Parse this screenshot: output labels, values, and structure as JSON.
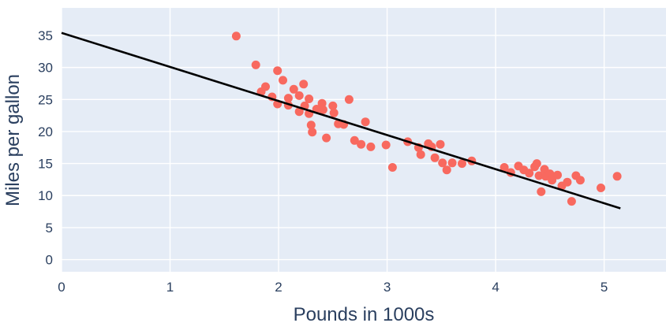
{
  "chart": {
    "xlabel": "Pounds in 1000s",
    "ylabel": "Miles per gallon"
  },
  "chart_data": {
    "type": "scatter",
    "title": "",
    "xlabel": "Pounds in 1000s",
    "ylabel": "Miles per gallon",
    "xlim": [
      0,
      5.57
    ],
    "ylim": [
      -1.9,
      39.3
    ],
    "x_ticks": [
      0,
      1,
      2,
      3,
      4,
      5
    ],
    "y_ticks": [
      0,
      5,
      10,
      15,
      20,
      25,
      30,
      35
    ],
    "grid": true,
    "legend": "none",
    "points": [
      [
        1.61,
        34.9
      ],
      [
        1.79,
        30.4
      ],
      [
        1.84,
        26.2
      ],
      [
        1.88,
        27.0
      ],
      [
        1.94,
        25.4
      ],
      [
        1.99,
        29.5
      ],
      [
        1.99,
        24.3
      ],
      [
        2.04,
        28.0
      ],
      [
        2.09,
        25.2
      ],
      [
        2.09,
        24.1
      ],
      [
        2.14,
        26.6
      ],
      [
        2.19,
        25.6
      ],
      [
        2.19,
        23.1
      ],
      [
        2.23,
        27.4
      ],
      [
        2.24,
        24.0
      ],
      [
        2.28,
        25.1
      ],
      [
        2.28,
        22.8
      ],
      [
        2.3,
        21.0
      ],
      [
        2.31,
        19.9
      ],
      [
        2.35,
        23.5
      ],
      [
        2.4,
        24.4
      ],
      [
        2.41,
        23.4
      ],
      [
        2.44,
        19.0
      ],
      [
        2.5,
        24.0
      ],
      [
        2.51,
        22.9
      ],
      [
        2.55,
        21.2
      ],
      [
        2.6,
        21.1
      ],
      [
        2.65,
        25.0
      ],
      [
        2.7,
        18.6
      ],
      [
        2.76,
        18.0
      ],
      [
        2.8,
        21.5
      ],
      [
        2.85,
        17.6
      ],
      [
        2.99,
        17.9
      ],
      [
        3.05,
        14.4
      ],
      [
        3.19,
        18.4
      ],
      [
        3.29,
        17.5
      ],
      [
        3.31,
        16.4
      ],
      [
        3.38,
        18.1
      ],
      [
        3.41,
        17.6
      ],
      [
        3.44,
        15.9
      ],
      [
        3.49,
        18.0
      ],
      [
        3.51,
        15.1
      ],
      [
        3.55,
        14.0
      ],
      [
        3.6,
        15.1
      ],
      [
        3.69,
        15.0
      ],
      [
        3.78,
        15.4
      ],
      [
        4.08,
        14.4
      ],
      [
        4.14,
        13.6
      ],
      [
        4.21,
        14.6
      ],
      [
        4.26,
        14.0
      ],
      [
        4.31,
        13.5
      ],
      [
        4.36,
        14.5
      ],
      [
        4.38,
        15.0
      ],
      [
        4.4,
        13.1
      ],
      [
        4.42,
        10.6
      ],
      [
        4.45,
        14.1
      ],
      [
        4.46,
        13.0
      ],
      [
        4.5,
        13.4
      ],
      [
        4.52,
        12.4
      ],
      [
        4.57,
        13.2
      ],
      [
        4.61,
        11.5
      ],
      [
        4.66,
        12.1
      ],
      [
        4.7,
        9.1
      ],
      [
        4.74,
        13.1
      ],
      [
        4.78,
        12.4
      ],
      [
        4.97,
        11.2
      ],
      [
        5.12,
        13.0
      ]
    ],
    "regression_line": {
      "x1": 0,
      "y1": 35.4,
      "x2": 5.15,
      "y2": 8.0
    },
    "colors": {
      "page_bg": "#ffffff",
      "panel_bg": "#e5ecf6",
      "grid": "#ffffff",
      "marker": "#f8695f",
      "line": "#000000",
      "text": "#2a3f5f"
    }
  }
}
